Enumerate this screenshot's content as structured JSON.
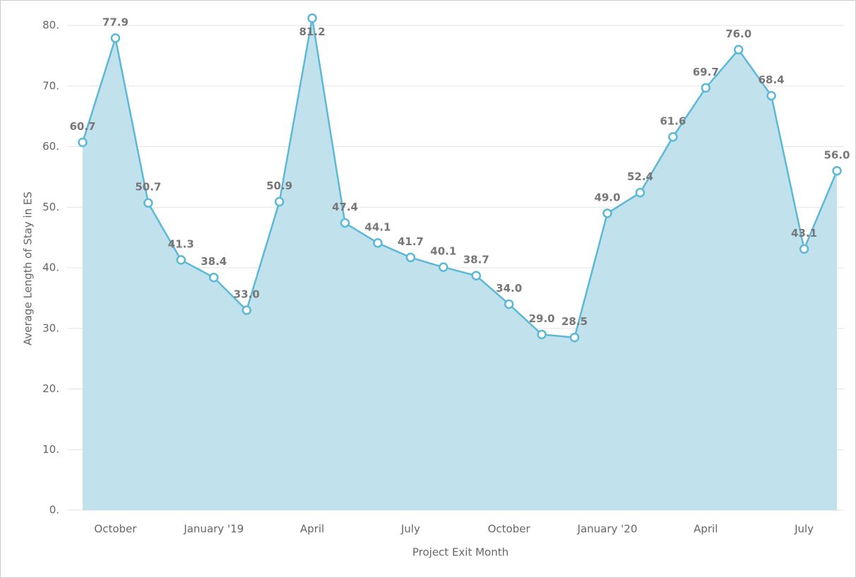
{
  "chart_data": {
    "type": "area",
    "x_label": "Project Exit Month",
    "y_label": "Average Length of Stay in ES",
    "categories": [
      null,
      "October",
      null,
      null,
      "January '19",
      null,
      null,
      "April",
      null,
      null,
      "July",
      null,
      null,
      "October",
      null,
      null,
      "January '20",
      null,
      null,
      "April",
      null,
      null,
      "July",
      null
    ],
    "series": [
      {
        "name": "Average Length of Stay in ES",
        "color": "#5bb8d6",
        "values": [
          60.7,
          77.9,
          50.7,
          41.3,
          38.4,
          33.0,
          50.9,
          81.2,
          47.4,
          44.1,
          41.7,
          40.1,
          38.7,
          34.0,
          29.0,
          28.5,
          49.0,
          52.4,
          61.6,
          69.7,
          76.0,
          68.4,
          43.1,
          56.0
        ],
        "value_labels": [
          "60.7",
          "77.9",
          "50.7",
          "41.3",
          "38.4",
          "33.0",
          "50.9",
          "81.2",
          "47.4",
          "44.1",
          "41.7",
          "40.1",
          "38.7",
          "34.0",
          "29.0",
          "28.5",
          "49.0",
          "52.4",
          "61.6",
          "69.7",
          "76.0",
          "68.4",
          "43.1",
          "56.0"
        ]
      }
    ],
    "ylim": [
      0,
      80
    ],
    "yticks": [
      {
        "value": 0,
        "label": "0."
      },
      {
        "value": 10,
        "label": "10."
      },
      {
        "value": 20,
        "label": "20."
      },
      {
        "value": 30,
        "label": "30."
      },
      {
        "value": 40,
        "label": "40."
      },
      {
        "value": 50,
        "label": "50."
      },
      {
        "value": 60,
        "label": "60."
      },
      {
        "value": 70,
        "label": "70."
      },
      {
        "value": 80,
        "label": "80."
      }
    ],
    "grid": true
  }
}
